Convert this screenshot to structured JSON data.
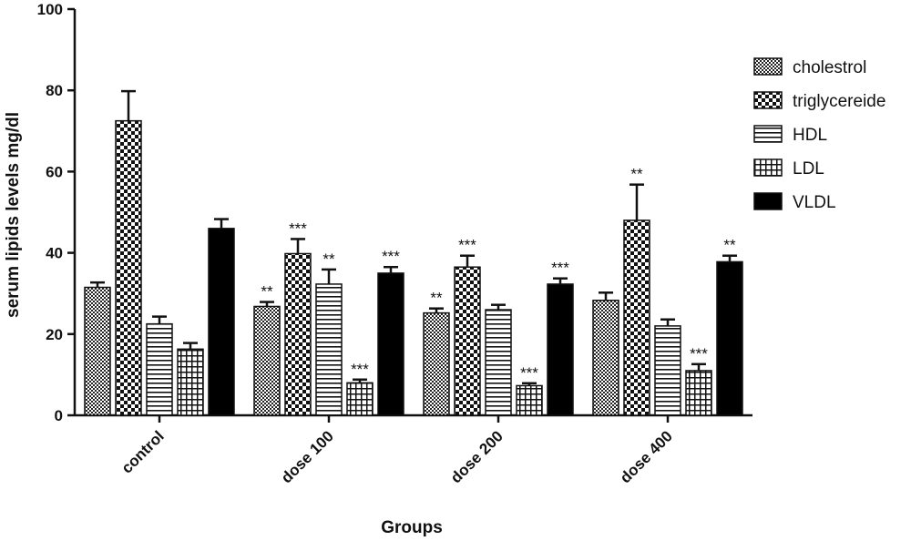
{
  "chart_data": {
    "type": "bar",
    "title": "",
    "xlabel": "Groups",
    "ylabel": "serum lipids levels mg/dl",
    "ylim": [
      0,
      100
    ],
    "yticks": [
      "0",
      "20",
      "40",
      "60",
      "80",
      "100"
    ],
    "categories": [
      "control",
      "dose 100",
      "dose 200",
      "dose 400"
    ],
    "legend_position": "top-right",
    "series": [
      {
        "name": "cholestrol",
        "pattern": "fine-checker",
        "values": [
          31.5,
          26.8,
          25.2,
          28.3
        ],
        "errors": [
          1.2,
          1.1,
          1.1,
          1.9
        ],
        "significance": [
          "",
          "**",
          "**",
          ""
        ]
      },
      {
        "name": "triglycereide",
        "pattern": "coarse-checker",
        "values": [
          72.5,
          39.8,
          36.5,
          48.0
        ],
        "errors": [
          7.3,
          3.6,
          2.8,
          8.8
        ],
        "significance": [
          "",
          "***",
          "***",
          "**"
        ]
      },
      {
        "name": "HDL",
        "pattern": "horizontal-lines",
        "values": [
          22.5,
          32.3,
          26.0,
          22.0
        ],
        "errors": [
          1.8,
          3.6,
          1.2,
          1.6
        ],
        "significance": [
          "",
          "**",
          "",
          ""
        ]
      },
      {
        "name": "LDL",
        "pattern": "grid",
        "values": [
          16.3,
          8.0,
          7.3,
          11.0
        ],
        "errors": [
          1.5,
          0.8,
          0.6,
          1.6
        ],
        "significance": [
          "",
          "***",
          "***",
          "***"
        ]
      },
      {
        "name": "VLDL",
        "pattern": "solid-black",
        "values": [
          46.0,
          35.0,
          32.3,
          37.8
        ],
        "errors": [
          2.3,
          1.5,
          1.4,
          1.5
        ],
        "significance": [
          "",
          "***",
          "***",
          "**"
        ]
      }
    ]
  }
}
